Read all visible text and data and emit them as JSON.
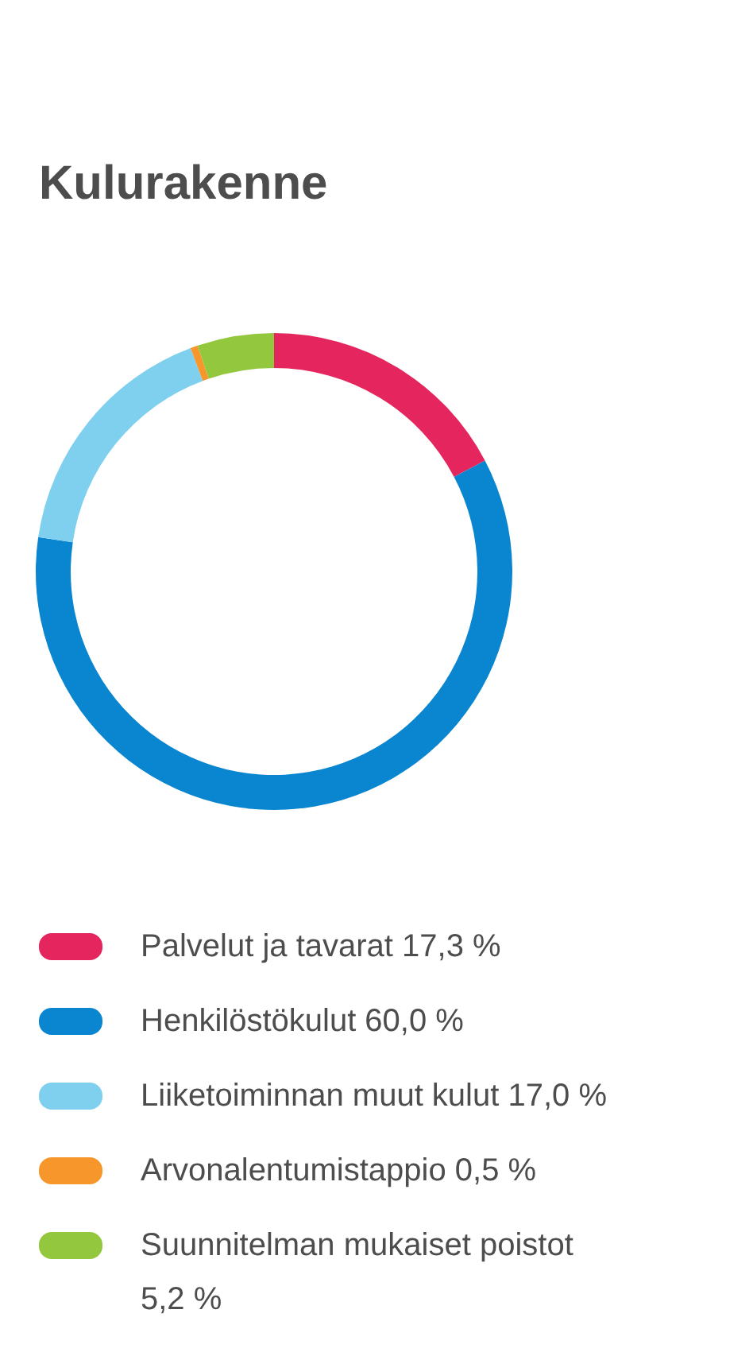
{
  "chart_data": {
    "type": "donut",
    "title": "Kulurakenne",
    "categories": [
      "Palvelut ja tavarat",
      "Henkilöstökulut",
      "Liiketoiminnan muut kulut",
      "Arvonalentumistappio",
      "Suunnitelman mukaiset poistot"
    ],
    "values": [
      17.3,
      60.0,
      17.0,
      0.5,
      5.2
    ],
    "value_labels": [
      "17,3 %",
      "60,0 %",
      "17,0 %",
      "0,5 %",
      "5,2 %"
    ],
    "colors": [
      "#e5255d",
      "#0a85cf",
      "#7fd0ee",
      "#f7962a",
      "#93c83e"
    ],
    "legend": "bottom"
  }
}
